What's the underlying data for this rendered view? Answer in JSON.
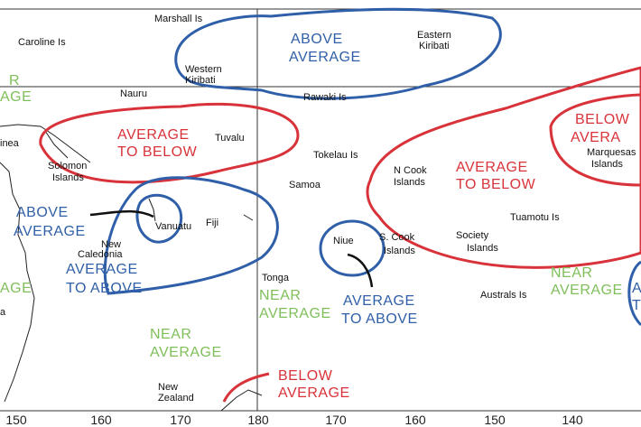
{
  "places": [
    {
      "lines": [
        "Marshall Is"
      ]
    },
    {
      "lines": [
        "Caroline Is"
      ]
    },
    {
      "lines": [
        "Eastern",
        "Kiribati"
      ]
    },
    {
      "lines": [
        "Western",
        "Kiribati"
      ]
    },
    {
      "lines": [
        "Nauru"
      ]
    },
    {
      "lines": [
        "Rawaki Is"
      ]
    },
    {
      "lines": [
        "Tuvalu"
      ]
    },
    {
      "lines": [
        "Tokelau Is"
      ]
    },
    {
      "lines": [
        "inea"
      ]
    },
    {
      "lines": [
        "Solomon",
        "Islands"
      ]
    },
    {
      "lines": [
        "N Cook",
        "Islands"
      ]
    },
    {
      "lines": [
        "Marquesas",
        "Islands"
      ]
    },
    {
      "lines": [
        "Samoa"
      ]
    },
    {
      "lines": [
        "Vanuatu"
      ]
    },
    {
      "lines": [
        "Fiji"
      ]
    },
    {
      "lines": [
        "New",
        "Caledonia"
      ]
    },
    {
      "lines": [
        "Niue"
      ]
    },
    {
      "lines": [
        "S. Cook",
        "Islands"
      ]
    },
    {
      "lines": [
        "Tuamotu Is"
      ]
    },
    {
      "lines": [
        "Society",
        "Islands"
      ]
    },
    {
      "lines": [
        "Tonga"
      ]
    },
    {
      "lines": [
        "Australs Is"
      ]
    },
    {
      "lines": [
        "New",
        "Zealand"
      ]
    },
    {
      "lines": [
        "a"
      ]
    }
  ],
  "outlooks": [
    {
      "lines": [
        "ABOVE",
        "AVERAGE"
      ]
    },
    {
      "lines": [
        "ABOVE",
        "AVERAGE"
      ]
    },
    {
      "lines": [
        "AVERAGE",
        "TO ABOVE"
      ]
    },
    {
      "lines": [
        "AVERAGE",
        "TO ABOVE"
      ]
    },
    {
      "lines": [
        "A",
        "T"
      ]
    },
    {
      "lines": [
        "AVERAGE",
        "TO BELOW"
      ]
    },
    {
      "lines": [
        "AVERAGE",
        "TO BELOW"
      ]
    },
    {
      "lines": [
        "BELOW",
        "AVERA"
      ]
    },
    {
      "lines": [
        "BELOW",
        "AVERAGE"
      ]
    },
    {
      "lines": [
        "R",
        "AGE"
      ]
    },
    {
      "lines": [
        "NEAR",
        "AVERAGE"
      ]
    },
    {
      "lines": [
        "NEAR",
        "AVERAGE"
      ]
    },
    {
      "lines": [
        "NEAR",
        "AVERAGE"
      ]
    },
    {
      "lines": [
        "AGE"
      ]
    }
  ],
  "longitudes": [
    150,
    160,
    170,
    180,
    170,
    160,
    150,
    140
  ]
}
